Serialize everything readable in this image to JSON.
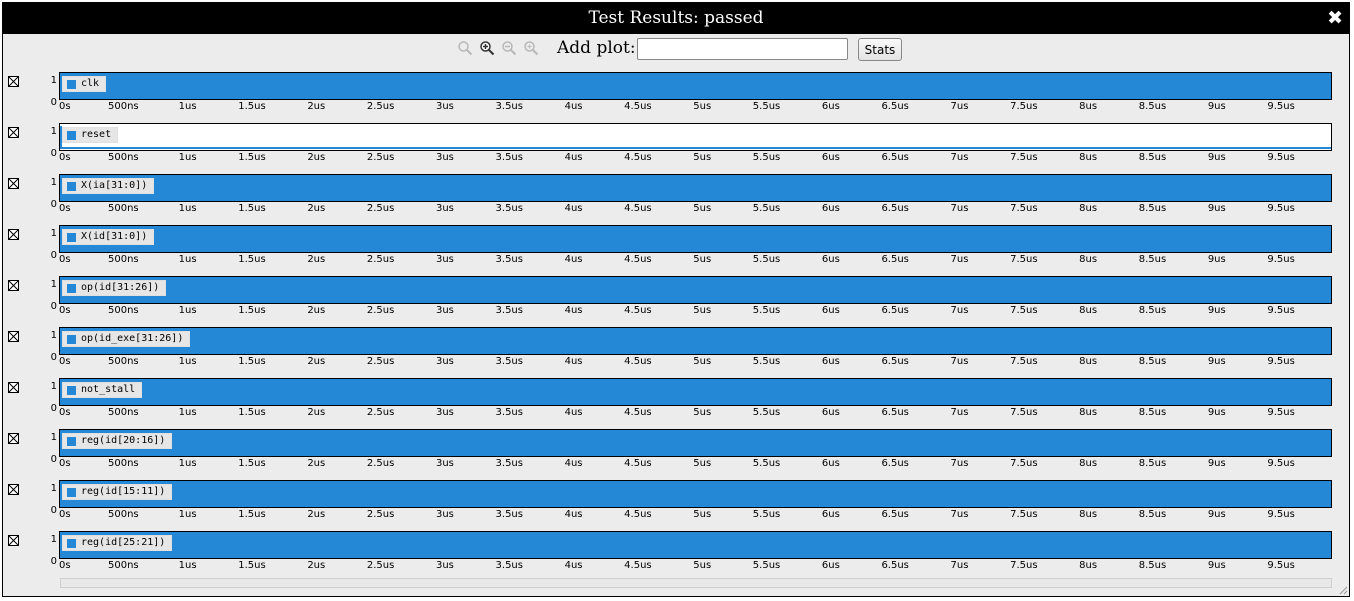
{
  "window": {
    "title": "Test Results: passed",
    "close_symbol": "✖"
  },
  "toolbar": {
    "zoom_icons": [
      "zoom-reset-icon",
      "zoom-in-icon",
      "zoom-out-icon",
      "zoom-fit-icon"
    ],
    "add_plot_label": "Add plot:",
    "add_plot_value": "",
    "stats_label": "Stats"
  },
  "axis": {
    "y_high": "1",
    "y_low": "0",
    "x_ticks": [
      "0s",
      "500ns",
      "1us",
      "1.5us",
      "2us",
      "2.5us",
      "3us",
      "3.5us",
      "4us",
      "4.5us",
      "5us",
      "5.5us",
      "6us",
      "6.5us",
      "7us",
      "7.5us",
      "8us",
      "8.5us",
      "9us",
      "9.5us"
    ],
    "x_max_ns": 9880
  },
  "colors": {
    "signal": "#2588d6",
    "title_bar": "#000000",
    "panel_bg": "#ececec"
  },
  "plots": [
    {
      "label": "clk",
      "pattern": "full"
    },
    {
      "label": "reset",
      "pattern": "low"
    },
    {
      "label": "X(ia[31:0])",
      "pattern": "full"
    },
    {
      "label": "X(id[31:0])",
      "pattern": "full"
    },
    {
      "label": "op(id[31:26])",
      "pattern": "full"
    },
    {
      "label": "op(id_exe[31:26])",
      "pattern": "full"
    },
    {
      "label": "not_stall",
      "pattern": "full"
    },
    {
      "label": "reg(id[20:16])",
      "pattern": "full"
    },
    {
      "label": "reg(id[15:11])",
      "pattern": "full"
    },
    {
      "label": "reg(id[25:21])",
      "pattern": "full"
    }
  ]
}
